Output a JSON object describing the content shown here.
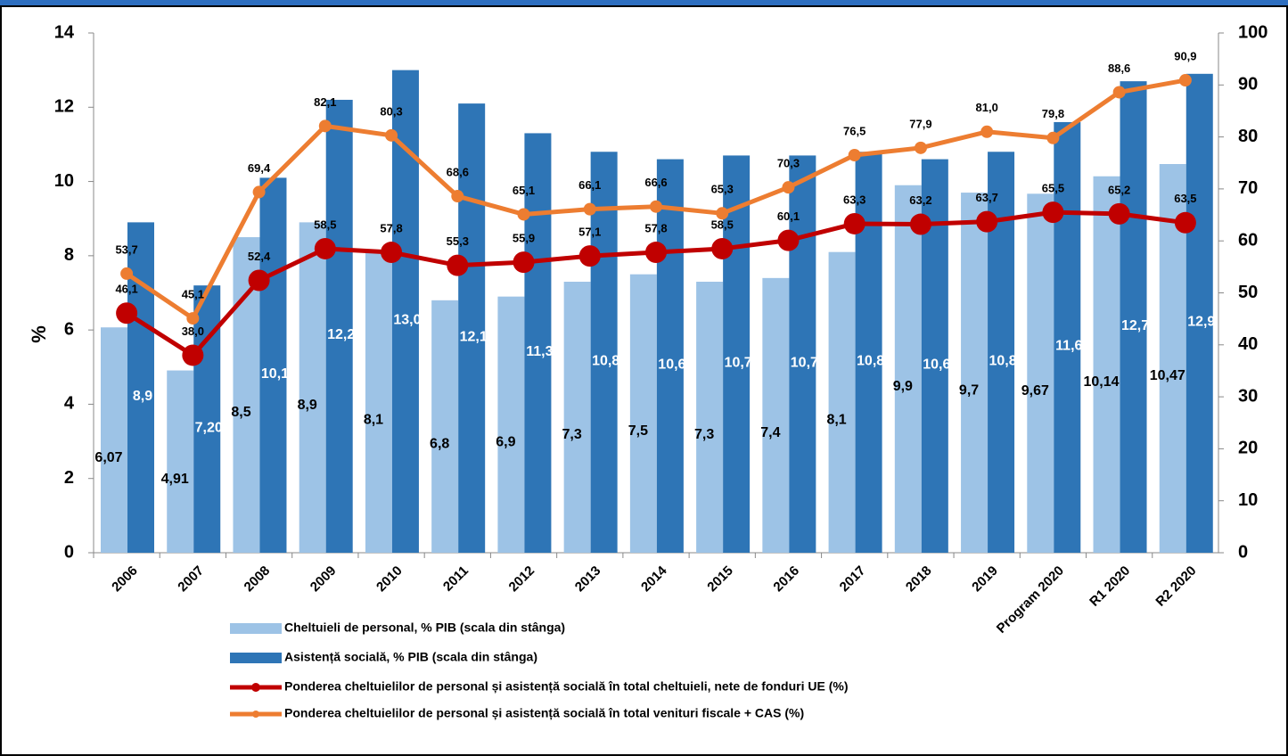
{
  "chart_data": {
    "type": "bar-line",
    "y_label": "%",
    "categories": [
      "2006",
      "2007",
      "2008",
      "2009",
      "2010",
      "2011",
      "2012",
      "2013",
      "2014",
      "2015",
      "2016",
      "2017",
      "2018",
      "2019",
      "Program 2020",
      "R1 2020",
      "R2 2020"
    ],
    "ylim": [
      0,
      14
    ],
    "yticks": [
      0,
      2,
      4,
      6,
      8,
      10,
      12,
      14
    ],
    "y2lim": [
      0,
      100
    ],
    "y2ticks": [
      0,
      10,
      20,
      30,
      40,
      50,
      60,
      70,
      80,
      90,
      100
    ],
    "series": [
      {
        "name": "Cheltuieli de personal, % PIB (scala din stânga)",
        "type": "bar",
        "color": "#9dc3e6",
        "values": [
          6.07,
          4.91,
          8.5,
          8.9,
          8.1,
          6.8,
          6.9,
          7.3,
          7.5,
          7.3,
          7.4,
          8.1,
          9.9,
          9.7,
          9.67,
          10.14,
          10.47
        ],
        "value_labels": [
          "6,07",
          "4,91",
          "8,5",
          "8,9",
          "8,1",
          "6,8",
          "6,9",
          "7,3",
          "7,5",
          "7,3",
          "7,4",
          "8,1",
          "9,9",
          "9,7",
          "9,67",
          "10,14",
          "10,47"
        ]
      },
      {
        "name": "Asistență socială, % PIB (scala din stânga)",
        "type": "bar",
        "color": "#2e75b6",
        "values": [
          8.9,
          7.2,
          10.1,
          12.2,
          13.0,
          12.1,
          11.3,
          10.8,
          10.6,
          10.7,
          10.7,
          10.8,
          10.6,
          10.8,
          11.6,
          12.7,
          12.9
        ],
        "value_labels": [
          "8,9",
          "7,20",
          "10,1",
          "12,2",
          "13,0",
          "12,1",
          "11,3",
          "10,8",
          "10,6",
          "10,7",
          "10,7",
          "10,8",
          "10,6",
          "10,8",
          "11,6",
          "12,7",
          "12,9"
        ]
      },
      {
        "name": "Ponderea cheltuielilor de personal și asistență socială în total cheltuieli, nete de fonduri UE (%)",
        "type": "line",
        "axis": "y2",
        "color": "#c00000",
        "values": [
          46.1,
          38.0,
          52.4,
          58.5,
          57.8,
          55.3,
          55.9,
          57.1,
          57.8,
          58.5,
          60.1,
          63.3,
          63.2,
          63.7,
          65.5,
          65.2,
          63.5
        ],
        "value_labels": [
          "46,1",
          "38,0",
          "52,4",
          "58,5",
          "57,8",
          "55,3",
          "55,9",
          "57,1",
          "57,8",
          "58,5",
          "60,1",
          "63,3",
          "63,2",
          "63,7",
          "65,5",
          "65,2",
          "63,5"
        ]
      },
      {
        "name": "Ponderea cheltuielilor de personal și asistență socială în total venituri fiscale + CAS (%)",
        "type": "line",
        "axis": "y2",
        "color": "#ed7d31",
        "values": [
          53.7,
          45.1,
          69.4,
          82.1,
          80.3,
          68.6,
          65.1,
          66.1,
          66.6,
          65.3,
          70.3,
          76.5,
          77.9,
          81.0,
          79.8,
          88.6,
          90.9
        ],
        "value_labels": [
          "53,7",
          "45,1",
          "69,4",
          "82,1",
          "80,3",
          "68,6",
          "65,1",
          "66,1",
          "66,6",
          "65,3",
          "70,3",
          "76,5",
          "77,9",
          "81,0",
          "79,8",
          "88,6",
          "90,9"
        ]
      }
    ]
  }
}
